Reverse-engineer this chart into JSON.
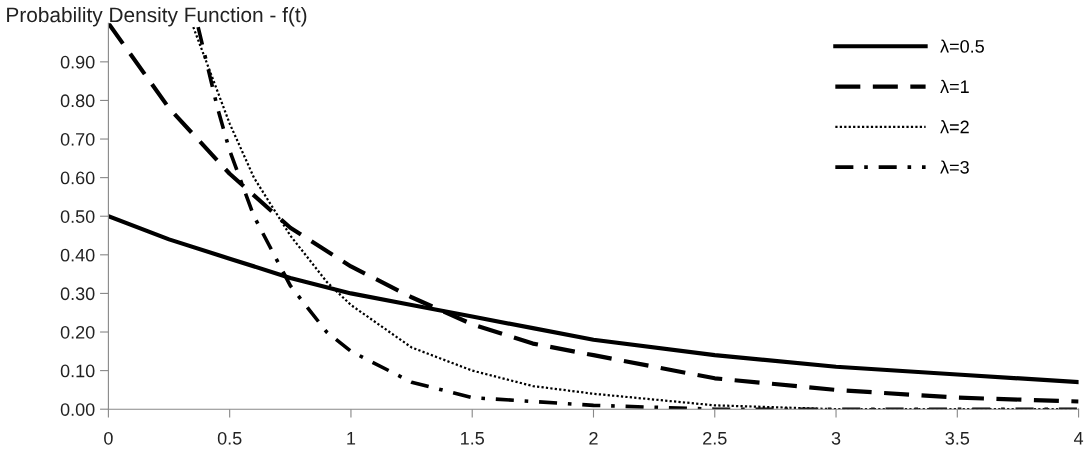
{
  "chart_data": {
    "type": "line",
    "title": "Probability Density Function - f(t)",
    "series": [
      {
        "name": "λ=0.5",
        "color": "#000000",
        "line_style": "solid",
        "x": [
          0,
          0.25,
          0.5,
          0.75,
          1,
          1.25,
          1.5,
          1.75,
          2,
          2.5,
          3,
          3.5,
          4
        ],
        "values": [
          0.5,
          0.44,
          0.39,
          0.34,
          0.3,
          0.27,
          0.24,
          0.21,
          0.18,
          0.14,
          0.11,
          0.09,
          0.07
        ]
      },
      {
        "name": "λ=1",
        "color": "#000000",
        "line_style": "dashed",
        "x": [
          0,
          0.25,
          0.5,
          0.75,
          1,
          1.25,
          1.5,
          1.75,
          2,
          2.5,
          3,
          3.5,
          4
        ],
        "values": [
          1.0,
          0.78,
          0.61,
          0.47,
          0.37,
          0.29,
          0.22,
          0.17,
          0.14,
          0.08,
          0.05,
          0.03,
          0.02
        ]
      },
      {
        "name": "λ=2",
        "color": "#000000",
        "line_style": "dotted",
        "x": [
          0.35,
          0.5,
          0.6,
          0.75,
          0.9,
          1,
          1.25,
          1.5,
          1.75,
          2,
          2.5,
          3,
          3.5,
          4
        ],
        "values": [
          0.99,
          0.74,
          0.6,
          0.45,
          0.33,
          0.27,
          0.16,
          0.1,
          0.06,
          0.04,
          0.01,
          0.0,
          0.0,
          0.0
        ]
      },
      {
        "name": "λ=3",
        "color": "#000000",
        "line_style": "dashdot",
        "x": [
          0.37,
          0.45,
          0.5,
          0.6,
          0.75,
          0.9,
          1,
          1.25,
          1.5,
          1.75,
          2,
          2.5,
          3,
          3.5,
          4
        ],
        "values": [
          0.99,
          0.78,
          0.67,
          0.5,
          0.32,
          0.2,
          0.15,
          0.07,
          0.03,
          0.02,
          0.01,
          0.0,
          0.0,
          0.0,
          0.0
        ]
      }
    ],
    "xlim": [
      0,
      4
    ],
    "xticks": [
      0,
      0.5,
      1,
      1.5,
      2,
      2.5,
      3,
      3.5,
      4
    ],
    "ylim": [
      0,
      1.0
    ],
    "yticks": [
      {
        "value": 0,
        "label": "0.00"
      },
      {
        "value": 0.1,
        "label": "0.10"
      },
      {
        "value": 0.2,
        "label": "0.20"
      },
      {
        "value": 0.3,
        "label": "0.30"
      },
      {
        "value": 0.4,
        "label": "0.40"
      },
      {
        "value": 0.5,
        "label": "0.50"
      },
      {
        "value": 0.6,
        "label": "0.60"
      },
      {
        "value": 0.7,
        "label": "0.70"
      },
      {
        "value": 0.8,
        "label": "0.80"
      },
      {
        "value": 0.9,
        "label": "0.90"
      }
    ],
    "grid": false,
    "legend": "top right"
  }
}
